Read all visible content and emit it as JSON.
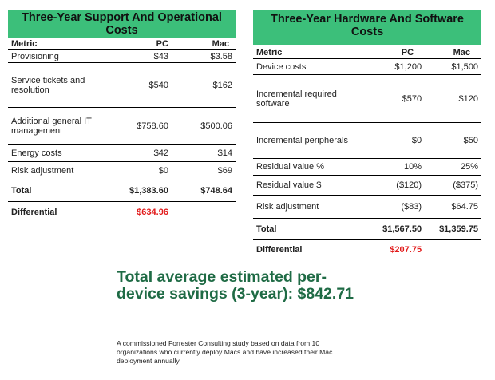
{
  "support_table": {
    "title": "Three-Year Support And Operational Costs",
    "columns": [
      "Metric",
      "PC",
      "Mac"
    ],
    "rows": [
      {
        "metric": "Provisioning",
        "pc": "$43",
        "mac": "$3.58"
      },
      {
        "metric": "Service tickets and resolution",
        "pc": "$540",
        "mac": "$162"
      },
      {
        "metric": "Additional general IT management",
        "pc": "$758.60",
        "mac": "$500.06"
      },
      {
        "metric": "Energy costs",
        "pc": "$42",
        "mac": "$14"
      },
      {
        "metric": "Risk adjustment",
        "pc": "$0",
        "mac": "$69"
      }
    ],
    "total": {
      "metric": "Total",
      "pc": "$1,383.60",
      "mac": "$748.64"
    },
    "differential": {
      "metric": "Differential",
      "value": "$634.96"
    }
  },
  "hardware_table": {
    "title": "Three-Year Hardware And Software Costs",
    "columns": [
      "Metric",
      "PC",
      "Mac"
    ],
    "rows": [
      {
        "metric": "Device costs",
        "pc": "$1,200",
        "mac": "$1,500"
      },
      {
        "metric": "Incremental required software",
        "pc": "$570",
        "mac": "$120"
      },
      {
        "metric": "Incremental peripherals",
        "pc": "$0",
        "mac": "$50"
      },
      {
        "metric": "Residual value %",
        "pc": "10%",
        "mac": "25%"
      },
      {
        "metric": "Residual value $",
        "pc": "($120)",
        "mac": "($375)"
      },
      {
        "metric": "Risk adjustment",
        "pc": "($83)",
        "mac": "$64.75"
      }
    ],
    "total": {
      "metric": "Total",
      "pc": "$1,567.50",
      "mac": "$1,359.75"
    },
    "differential": {
      "metric": "Differential",
      "value": "$207.75"
    }
  },
  "savings": {
    "text": "Total average estimated per-device savings (3-year): $842.71"
  },
  "footnote": "A commissioned Forrester Consulting study based on data from 10 organizations who currently deploy Macs and have increased their Mac deployment annually."
}
